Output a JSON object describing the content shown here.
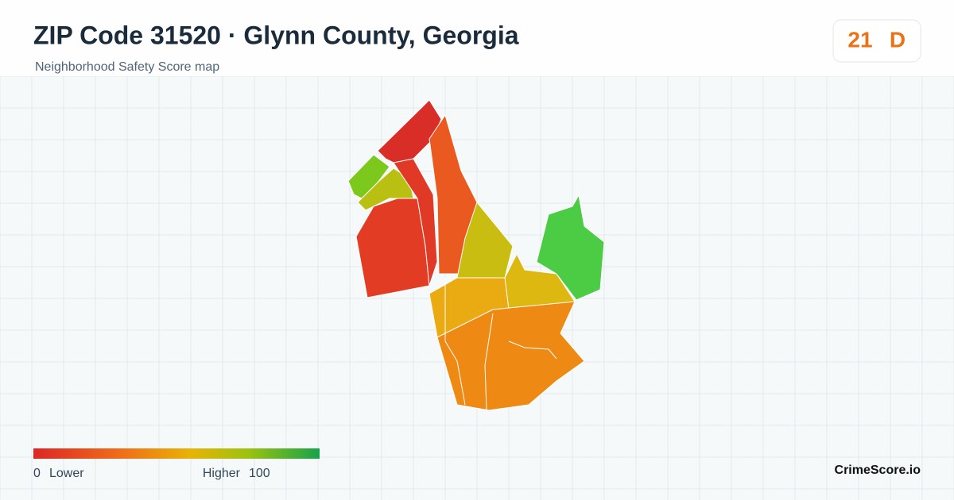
{
  "header": {
    "title": "ZIP Code 31520 · Glynn County, Georgia",
    "subtitle": "Neighborhood Safety Score map"
  },
  "score": {
    "value": 21,
    "grade": "D"
  },
  "legend": {
    "min": 0,
    "min_label": "Lower",
    "max_label": "Higher",
    "max": 100
  },
  "brand": "CrimeScore.io"
}
